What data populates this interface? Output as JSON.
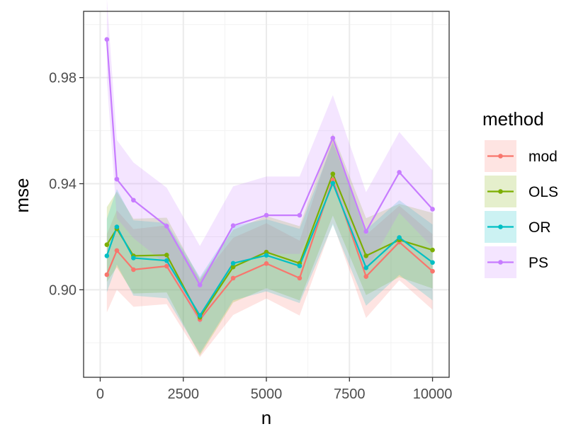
{
  "chart_data": {
    "type": "line",
    "title": "",
    "xlabel": "n",
    "ylabel": "mse",
    "xlim": [
      -500,
      10500
    ],
    "ylim": [
      0.867,
      1.005
    ],
    "xticks": [
      0,
      2500,
      5000,
      7500,
      10000
    ],
    "xtick_labels": [
      "0",
      "2500",
      "5000",
      "7500",
      "10000"
    ],
    "yticks": [
      0.9,
      0.94,
      0.98
    ],
    "ytick_labels": [
      "0.90",
      "0.94",
      "0.98"
    ],
    "grid": true,
    "legend_title": "method",
    "legend_position": "right",
    "x": [
      200,
      500,
      1000,
      2000,
      3000,
      4000,
      5000,
      6000,
      7000,
      8000,
      9000,
      10000
    ],
    "series": [
      {
        "name": "mod",
        "color": "#F8766D",
        "values": [
          0.9057,
          0.9148,
          0.9076,
          0.9089,
          0.8888,
          0.9044,
          0.9099,
          0.9044,
          0.9414,
          0.905,
          0.918,
          0.907
        ],
        "lower": [
          0.8915,
          0.9,
          0.8936,
          0.8946,
          0.8746,
          0.8905,
          0.8967,
          0.8903,
          0.9251,
          0.8894,
          0.9036,
          0.8925
        ],
        "upper": [
          0.921,
          0.93,
          0.9229,
          0.9243,
          0.9037,
          0.9196,
          0.9251,
          0.9185,
          0.9568,
          0.9207,
          0.9317,
          0.921
        ]
      },
      {
        "name": "OLS",
        "color": "#7CAE00",
        "values": [
          0.917,
          0.923,
          0.9128,
          0.9131,
          0.8896,
          0.9086,
          0.9142,
          0.91,
          0.9437,
          0.9128,
          0.9188,
          0.915
        ],
        "lower": [
          0.903,
          0.9085,
          0.8986,
          0.899,
          0.8752,
          0.8952,
          0.9006,
          0.896,
          0.928,
          0.898,
          0.9048,
          0.9005
        ],
        "upper": [
          0.9312,
          0.937,
          0.9268,
          0.9272,
          0.9041,
          0.9226,
          0.9278,
          0.924,
          0.959,
          0.927,
          0.9324,
          0.929
        ]
      },
      {
        "name": "OR",
        "color": "#00BFC4",
        "values": [
          0.9128,
          0.9237,
          0.912,
          0.911,
          0.8903,
          0.91,
          0.913,
          0.909,
          0.9402,
          0.9083,
          0.9197,
          0.9103
        ],
        "lower": [
          0.899,
          0.9095,
          0.8978,
          0.8968,
          0.876,
          0.896,
          0.8994,
          0.895,
          0.9245,
          0.894,
          0.9056,
          0.896
        ],
        "upper": [
          0.9268,
          0.938,
          0.9262,
          0.9252,
          0.9048,
          0.924,
          0.9266,
          0.923,
          0.9555,
          0.9226,
          0.9338,
          0.9246
        ]
      },
      {
        "name": "PS",
        "color": "#C77CFF",
        "values": [
          0.9944,
          0.9417,
          0.9338,
          0.924,
          0.9018,
          0.9242,
          0.9281,
          0.9281,
          0.9572,
          0.922,
          0.9443,
          0.9304
        ],
        "lower": [
          0.979,
          0.927,
          0.9195,
          0.9095,
          0.887,
          0.9095,
          0.9135,
          0.9135,
          0.941,
          0.907,
          0.929,
          0.916
        ],
        "upper": [
          1.01,
          0.9565,
          0.948,
          0.9385,
          0.9165,
          0.939,
          0.9427,
          0.9427,
          0.9734,
          0.9368,
          0.9595,
          0.945
        ]
      }
    ]
  }
}
